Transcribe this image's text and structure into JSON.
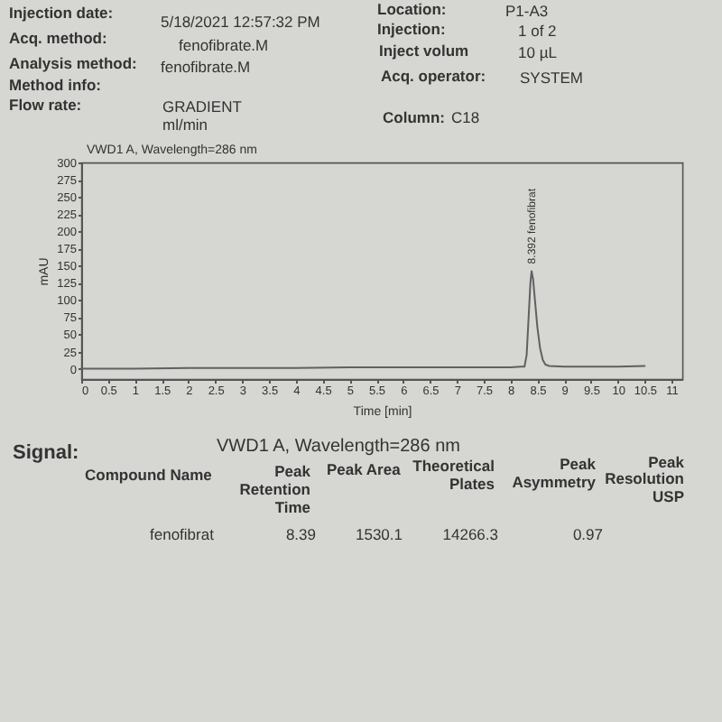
{
  "chart_data": {
    "type": "line",
    "title": "VWD1 A, Wavelength=286 nm",
    "xlabel": "Time [min]",
    "ylabel": "mAU",
    "xlim": [
      0,
      11.2
    ],
    "ylim": [
      -15,
      300
    ],
    "xticks": [
      0,
      0.5,
      1,
      1.5,
      2,
      2.5,
      3,
      3.5,
      4,
      4.5,
      5,
      5.5,
      6,
      6.5,
      7,
      7.5,
      8,
      8.5,
      9,
      9.5,
      10,
      10.5,
      11
    ],
    "yticks": [
      0,
      25,
      50,
      75,
      100,
      125,
      150,
      175,
      200,
      225,
      250,
      275,
      300
    ],
    "series": [
      {
        "color": "#5f6161",
        "x": [
          0,
          1,
          2,
          3,
          4,
          5,
          6,
          7,
          8,
          8.2,
          8.26,
          8.3,
          8.34,
          8.37,
          8.392,
          8.42,
          8.46,
          8.5,
          8.55,
          8.6,
          8.65,
          8.72,
          9,
          9.5,
          10,
          10.5
        ],
        "values": [
          0,
          0,
          1,
          1,
          1,
          2,
          2,
          2,
          2,
          3,
          3,
          20,
          80,
          125,
          142,
          130,
          95,
          60,
          30,
          13,
          6,
          4,
          3,
          3,
          3,
          4
        ]
      }
    ],
    "annotations": [
      "Injection date:",
      "5/18/2021 12:57:32 PM",
      "Location:",
      "P1-A3",
      "Acq. method:",
      "fenofibrate.M",
      "Injection:",
      "1 of 2",
      "Analysis method:",
      "fenofibrate.M",
      "Inject volum",
      "10 µL",
      "Method info:",
      "Acq. operator:",
      "SYSTEM",
      "Flow rate:",
      "GRADIENT",
      "ml/min",
      "Column:",
      "C18",
      "Signal:",
      "VWD1 A, Wavelength=286 nm",
      "Compound Name",
      "Peak",
      "Retention",
      "Time",
      "Peak Area",
      "Theoretical",
      "Plates",
      "Peak",
      "Asymmetry",
      "Peak",
      "Resolution",
      "USP",
      "fenofibrat",
      "8.39",
      "1530.1",
      "14266.3",
      "0.97",
      {
        "text": "8.392 fenofibrat",
        "x": 8.392,
        "y": 142
      }
    ]
  }
}
